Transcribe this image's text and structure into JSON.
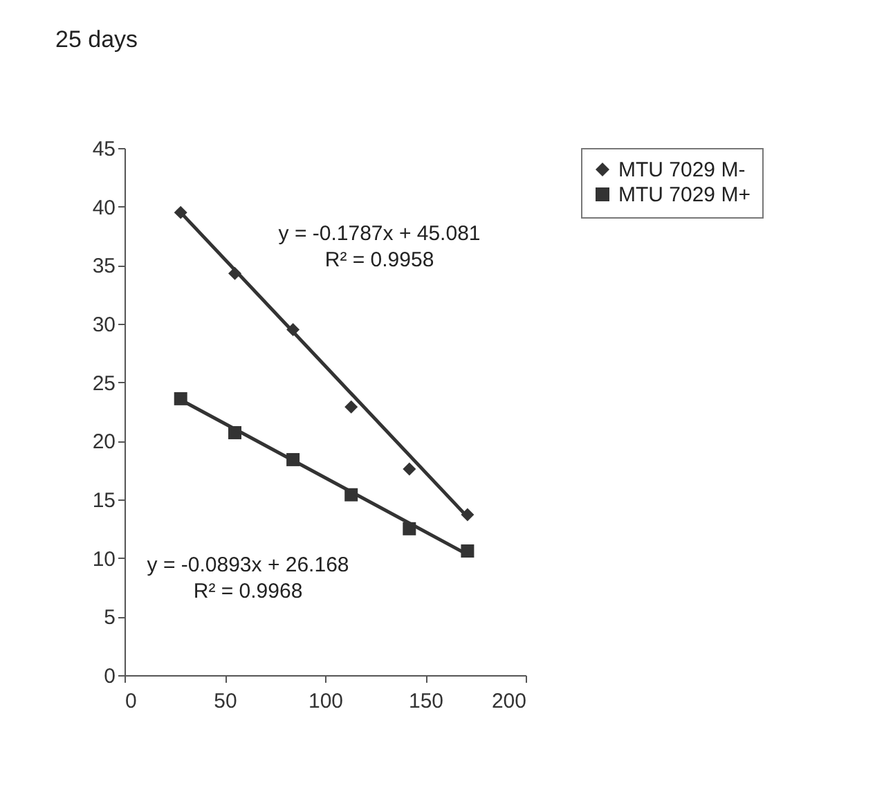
{
  "chart_data": {
    "type": "scatter",
    "title": "25 days",
    "xlim": [
      0,
      200
    ],
    "xticks": [
      0,
      50,
      100,
      150,
      200
    ],
    "ylim": [
      0,
      45
    ],
    "yticks": [
      0,
      5,
      10,
      15,
      20,
      25,
      30,
      35,
      40,
      45
    ],
    "grid": false,
    "legend": "right",
    "series": [
      {
        "name": "MTU 7029 M-",
        "color": "#333333",
        "marker": "diamond",
        "x": [
          28,
          55,
          84,
          113,
          142,
          171
        ],
        "values": [
          39.5,
          34.3,
          29.5,
          22.9,
          17.6,
          13.7
        ]
      },
      {
        "name": "MTU 7029 M+",
        "color": "#333333",
        "marker": "square",
        "x": [
          28,
          55,
          84,
          113,
          142,
          171
        ],
        "values": [
          23.6,
          20.7,
          18.4,
          15.4,
          12.5,
          10.6
        ]
      },
      {
        "type": "line",
        "color": "#333333",
        "x": [
          28,
          171
        ],
        "values": [
          39.5,
          13.5
        ]
      },
      {
        "type": "line",
        "color": "#333333",
        "x": [
          28,
          171
        ],
        "values": [
          23.5,
          10.3
        ]
      }
    ],
    "annotations": [
      "y = -0.1787x + 45.081",
      "R² = 0.9958",
      "y = -0.0893x + 26.168",
      "R² = 0.9968"
    ]
  }
}
